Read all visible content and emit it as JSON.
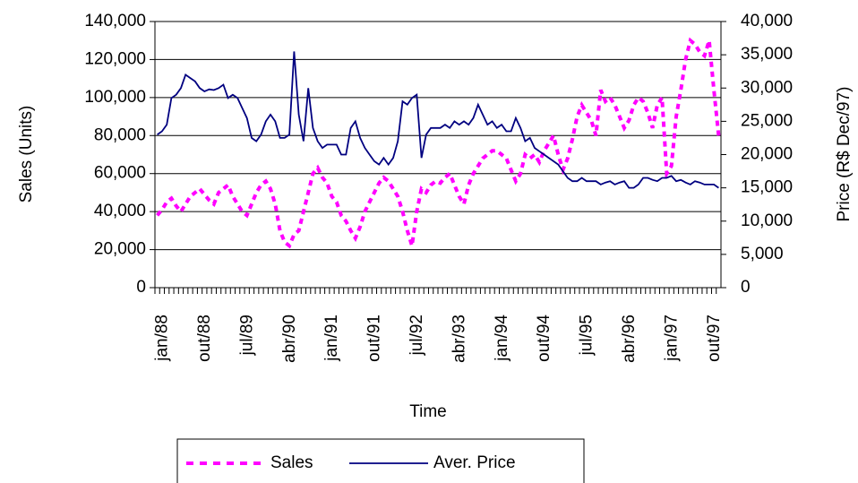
{
  "chart_data": {
    "type": "line",
    "x_label": "Time",
    "y_label": "Sales (Units)",
    "y2_label": "Price (R$ Dec/97)",
    "categories": [
      "jan/88",
      null,
      null,
      null,
      null,
      null,
      null,
      null,
      null,
      "out/88",
      null,
      null,
      null,
      null,
      null,
      null,
      null,
      null,
      "jul/89",
      null,
      null,
      null,
      null,
      null,
      null,
      null,
      null,
      "abr/90",
      null,
      null,
      null,
      null,
      null,
      null,
      null,
      null,
      "jan/91",
      null,
      null,
      null,
      null,
      null,
      null,
      null,
      null,
      "out/91",
      null,
      null,
      null,
      null,
      null,
      null,
      null,
      null,
      "jul/92",
      null,
      null,
      null,
      null,
      null,
      null,
      null,
      null,
      "abr/93",
      null,
      null,
      null,
      null,
      null,
      null,
      null,
      null,
      "jan/94",
      null,
      null,
      null,
      null,
      null,
      null,
      null,
      null,
      "out/94",
      null,
      null,
      null,
      null,
      null,
      null,
      null,
      null,
      "jul/95",
      null,
      null,
      null,
      null,
      null,
      null,
      null,
      null,
      "abr/96",
      null,
      null,
      null,
      null,
      null,
      null,
      null,
      null,
      "jan/97",
      null,
      null,
      null,
      null,
      null,
      null,
      null,
      null,
      "out/97",
      null,
      null
    ],
    "ylim": [
      0,
      140000
    ],
    "yticks": [
      0,
      {
        "value": 20000,
        "label": "20,000"
      },
      {
        "value": 40000,
        "label": "40,000"
      },
      {
        "value": 60000,
        "label": "60,000"
      },
      {
        "value": 80000,
        "label": "80,000"
      },
      {
        "value": 100000,
        "label": "100,000"
      },
      {
        "value": 120000,
        "label": "120,000"
      },
      {
        "value": 140000,
        "label": "140,000"
      }
    ],
    "y2lim": [
      0,
      40000
    ],
    "y2ticks": [
      0,
      {
        "value": 5000,
        "label": "5,000"
      },
      {
        "value": 10000,
        "label": "10,000"
      },
      {
        "value": 15000,
        "label": "15,000"
      },
      {
        "value": 20000,
        "label": "20,000"
      },
      {
        "value": 25000,
        "label": "25,000"
      },
      {
        "value": 30000,
        "label": "30,000"
      },
      {
        "value": 35000,
        "label": "35,000"
      },
      {
        "value": 40000,
        "label": "40,000"
      }
    ],
    "grid": true,
    "series": [
      {
        "name": "Sales",
        "color": "#ff00ff",
        "dashed": true,
        "values": [
          38000,
          41000,
          45000,
          47000,
          43000,
          40000,
          44000,
          48000,
          50000,
          52000,
          49000,
          46000,
          44000,
          50000,
          52000,
          54000,
          48000,
          44000,
          40000,
          38000,
          44000,
          50000,
          54000,
          56000,
          52000,
          44000,
          30000,
          24000,
          22000,
          28000,
          30000,
          40000,
          50000,
          60000,
          63000,
          58000,
          55000,
          48000,
          45000,
          38000,
          35000,
          30000,
          26000,
          32000,
          40000,
          45000,
          50000,
          55000,
          58000,
          56000,
          52000,
          48000,
          40000,
          30000,
          22000,
          40000,
          52000,
          50000,
          54000,
          56000,
          55000,
          58000,
          60000,
          54000,
          48000,
          44000,
          54000,
          60000,
          64000,
          68000,
          70000,
          72000,
          72000,
          70000,
          68000,
          62000,
          56000,
          60000,
          70000,
          68000,
          70000,
          66000,
          72000,
          76000,
          80000,
          70000,
          62000,
          68000,
          78000,
          90000,
          96000,
          92000,
          88000,
          80000,
          104000,
          98000,
          100000,
          96000,
          90000,
          84000,
          88000,
          96000,
          100000,
          98000,
          92000,
          84000,
          96000,
          100000,
          60000,
          64000,
          90000,
          104000,
          120000,
          130000,
          128000,
          124000,
          122000,
          130000,
          104000,
          80000
        ]
      },
      {
        "name": "Aver. Price",
        "color": "#000080",
        "axis": "y2",
        "values": [
          23000,
          23500,
          24500,
          28500,
          29000,
          30000,
          32000,
          31500,
          31000,
          30000,
          29500,
          29800,
          29700,
          30000,
          30500,
          28500,
          29000,
          28500,
          27000,
          25500,
          22500,
          22000,
          23000,
          25000,
          26000,
          25000,
          22500,
          22500,
          23000,
          35500,
          26000,
          22000,
          30000,
          24000,
          22000,
          21000,
          21500,
          21500,
          21500,
          20000,
          20000,
          24000,
          25000,
          22500,
          21000,
          20000,
          19000,
          18500,
          19500,
          18500,
          19500,
          22000,
          28000,
          27500,
          28500,
          29000,
          19500,
          23000,
          24000,
          24000,
          24000,
          24500,
          24000,
          25000,
          24500,
          25000,
          24500,
          25500,
          27500,
          26000,
          24500,
          25000,
          24000,
          24500,
          23500,
          23500,
          25500,
          24000,
          22000,
          22500,
          21000,
          20500,
          20000,
          19500,
          19000,
          18500,
          17500,
          16500,
          16000,
          16000,
          16500,
          16000,
          16000,
          16000,
          15500,
          15800,
          16000,
          15500,
          15800,
          16000,
          15000,
          15000,
          15500,
          16500,
          16500,
          16200,
          16000,
          16500,
          16500,
          16800,
          16000,
          16200,
          15800,
          15500,
          16000,
          15800,
          15500,
          15500,
          15500,
          15000
        ]
      }
    ]
  }
}
